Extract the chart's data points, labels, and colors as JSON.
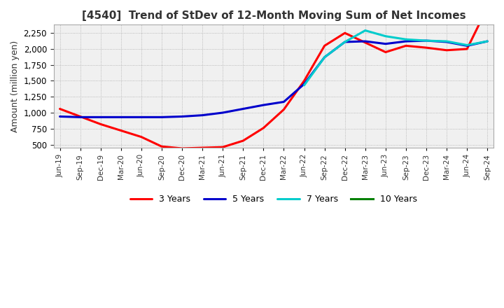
{
  "title": "[4540]  Trend of StDev of 12-Month Moving Sum of Net Incomes",
  "ylabel": "Amount (million yen)",
  "ylim": [
    450,
    2380
  ],
  "yticks": [
    500,
    750,
    1000,
    1250,
    1500,
    1750,
    2000,
    2250
  ],
  "background_color": "#ffffff",
  "plot_bg_color": "#f0f0f0",
  "grid_color": "#aaaaaa",
  "x_labels": [
    "Jun-19",
    "Sep-19",
    "Dec-19",
    "Mar-20",
    "Jun-20",
    "Sep-20",
    "Dec-20",
    "Mar-21",
    "Jun-21",
    "Sep-21",
    "Dec-21",
    "Mar-22",
    "Jun-22",
    "Sep-22",
    "Dec-22",
    "Mar-23",
    "Jun-23",
    "Sep-23",
    "Dec-23",
    "Mar-24",
    "Jun-24",
    "Sep-24"
  ],
  "series": {
    "3 Years": {
      "color": "#ff0000",
      "values": [
        1060,
        940,
        820,
        720,
        620,
        470,
        440,
        450,
        460,
        560,
        760,
        1050,
        1500,
        2050,
        2250,
        2100,
        1950,
        2050,
        2020,
        1980,
        2000,
        2650
      ]
    },
    "5 Years": {
      "color": "#0000cc",
      "values": [
        940,
        930,
        930,
        930,
        930,
        930,
        940,
        960,
        1000,
        1060,
        1120,
        1170,
        1450,
        1870,
        2110,
        2120,
        2080,
        2120,
        2130,
        2110,
        2050,
        2120
      ]
    },
    "7 Years": {
      "color": "#00cccc",
      "values": [
        null,
        null,
        null,
        null,
        null,
        null,
        null,
        null,
        null,
        null,
        null,
        null,
        1430,
        1870,
        2110,
        2290,
        2200,
        2150,
        2130,
        2120,
        2060,
        2120
      ]
    },
    "10 Years": {
      "color": "#008000",
      "values": [
        null,
        null,
        null,
        null,
        null,
        null,
        null,
        null,
        null,
        null,
        null,
        null,
        null,
        null,
        null,
        null,
        null,
        null,
        null,
        null,
        null,
        null
      ]
    }
  }
}
